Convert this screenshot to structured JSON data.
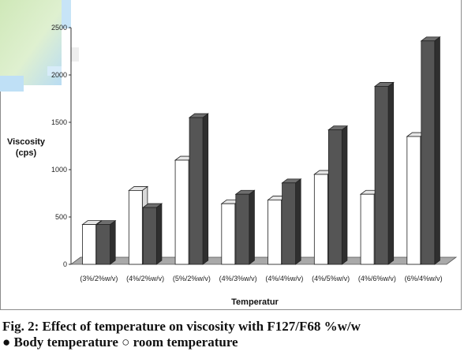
{
  "chart_data": {
    "type": "bar",
    "title": "",
    "xlabel": "Temperatur",
    "ylabel": "Viscosity (cps)",
    "ylabel_lines": [
      "Viscosity",
      "(cps)"
    ],
    "ylim": [
      0,
      2500
    ],
    "yticks": [
      0,
      500,
      1000,
      1500,
      2000,
      2500
    ],
    "categories": [
      "(3%/2%w/v)",
      "(4%/2%w/v)",
      "(5%/2%w/v)",
      "(4%/3%w/v)",
      "(4%/4%w/v)",
      "(4%/5%w/v)",
      "(4%/6%w/v)",
      "(6%/4%w/v)"
    ],
    "series": [
      {
        "name": "room temperature",
        "color": "#ffffff",
        "values": [
          420,
          780,
          1100,
          640,
          680,
          950,
          740,
          1350
        ]
      },
      {
        "name": "Body temperature",
        "color": "#4f4f4f",
        "values": [
          420,
          600,
          1550,
          740,
          860,
          1420,
          1880,
          2360
        ]
      }
    ],
    "grid": false,
    "style": "3d"
  },
  "caption": {
    "line1": "Fig. 2: Effect of temperature on viscosity with F127/F68 %w/w",
    "line2": "● Body temperature ○ room temperature"
  }
}
